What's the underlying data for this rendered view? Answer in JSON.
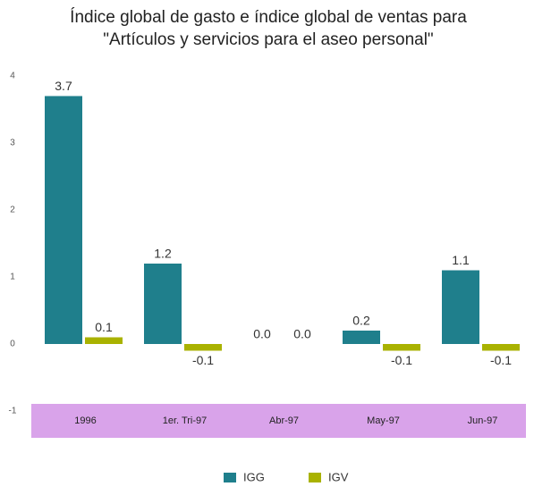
{
  "chart_data": {
    "type": "bar",
    "title": [
      "Índice global de gasto e índice global de ventas para",
      "\"Artículos y servicios para el aseo personal\""
    ],
    "categories": [
      "1996",
      "1er. Tri-97",
      "Abr-97",
      "May-97",
      "Jun-97"
    ],
    "series": [
      {
        "name": "IGG",
        "color": "#1f7f8c",
        "values": [
          3.7,
          1.2,
          0,
          0.2,
          1.1
        ],
        "value_labels": [
          "3.7",
          "1.2",
          "0.0",
          "0.2",
          "1.1"
        ]
      },
      {
        "name": "IGV",
        "color": "#a9b200",
        "values": [
          0.1,
          -0.1,
          0,
          -0.1,
          -0.1
        ],
        "value_labels": [
          "0.1",
          "-0.1",
          "0.0",
          "-0.1",
          "-0.1"
        ]
      }
    ],
    "ylim": [
      -1,
      4
    ],
    "yticks": [
      -1,
      0,
      1,
      2,
      3,
      4
    ],
    "grid": false,
    "legend": "bottom"
  }
}
